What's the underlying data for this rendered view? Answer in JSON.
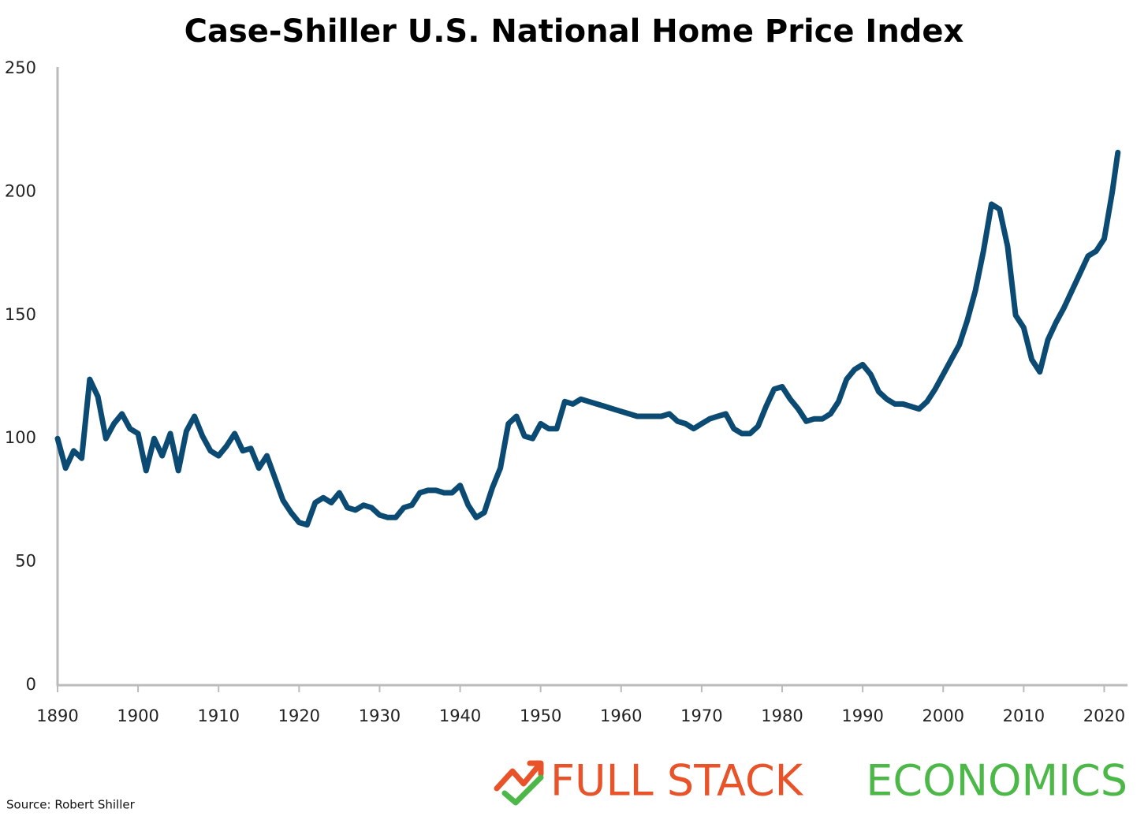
{
  "chart_data": {
    "type": "line",
    "title": "Case-Shiller U.S. National Home Price Index",
    "source": "Source: Robert Shiller",
    "brand": [
      "FULL STACK",
      "ECONOMICS"
    ],
    "x": [
      1890,
      1891,
      1892,
      1893,
      1894,
      1895,
      1896,
      1897,
      1898,
      1899,
      1900,
      1901,
      1902,
      1903,
      1904,
      1905,
      1906,
      1907,
      1908,
      1909,
      1910,
      1911,
      1912,
      1913,
      1914,
      1915,
      1916,
      1917,
      1918,
      1919,
      1920,
      1921,
      1922,
      1923,
      1924,
      1925,
      1926,
      1927,
      1928,
      1929,
      1930,
      1931,
      1932,
      1933,
      1934,
      1935,
      1936,
      1937,
      1938,
      1939,
      1940,
      1941,
      1942,
      1943,
      1944,
      1945,
      1946,
      1947,
      1948,
      1949,
      1950,
      1951,
      1952,
      1953,
      1954,
      1955,
      1956,
      1957,
      1958,
      1959,
      1960,
      1961,
      1962,
      1963,
      1964,
      1965,
      1966,
      1967,
      1968,
      1969,
      1970,
      1971,
      1972,
      1973,
      1974,
      1975,
      1976,
      1977,
      1978,
      1979,
      1980,
      1981,
      1982,
      1983,
      1984,
      1985,
      1986,
      1987,
      1988,
      1989,
      1990,
      1991,
      1992,
      1993,
      1994,
      1995,
      1996,
      1997,
      1998,
      1999,
      2000,
      2001,
      2002,
      2003,
      2004,
      2005,
      2006,
      2007,
      2008,
      2009,
      2010,
      2011,
      2012,
      2013,
      2014,
      2015,
      2016,
      2017,
      2018,
      2019,
      2020,
      2021,
      2021.7
    ],
    "series": [
      {
        "name": "Case-Shiller U.S. National Home Price Index",
        "color": "#0b4a72",
        "values": [
          100,
          88,
          95,
          92,
          124,
          117,
          100,
          106,
          110,
          104,
          102,
          87,
          100,
          93,
          102,
          87,
          103,
          109,
          101,
          95,
          93,
          97,
          102,
          95,
          96,
          88,
          93,
          84,
          75,
          70,
          66,
          65,
          74,
          76,
          74,
          78,
          72,
          71,
          73,
          72,
          69,
          68,
          68,
          72,
          73,
          78,
          79,
          79,
          78,
          78,
          81,
          73,
          68,
          70,
          80,
          88,
          106,
          109,
          101,
          100,
          106,
          104,
          104,
          115,
          114,
          116,
          115,
          114,
          113,
          112,
          111,
          110,
          109,
          109,
          109,
          109,
          110,
          107,
          106,
          104,
          106,
          108,
          109,
          110,
          104,
          102,
          102,
          105,
          113,
          120,
          121,
          116,
          112,
          107,
          108,
          108,
          110,
          115,
          124,
          128,
          130,
          126,
          119,
          116,
          114,
          114,
          113,
          112,
          115,
          120,
          126,
          132,
          138,
          148,
          160,
          176,
          195,
          193,
          178,
          150,
          145,
          132,
          127,
          140,
          147,
          153,
          160,
          167,
          174,
          176,
          181,
          200,
          216
        ]
      }
    ],
    "xlim": [
      1890,
      2022.6
    ],
    "xticks": [
      1890,
      1900,
      1910,
      1920,
      1930,
      1940,
      1950,
      1960,
      1970,
      1980,
      1990,
      2000,
      2010,
      2020
    ],
    "ylim": [
      0,
      250
    ],
    "yticks": [
      0,
      50,
      100,
      150,
      200,
      250
    ],
    "grid": false
  }
}
